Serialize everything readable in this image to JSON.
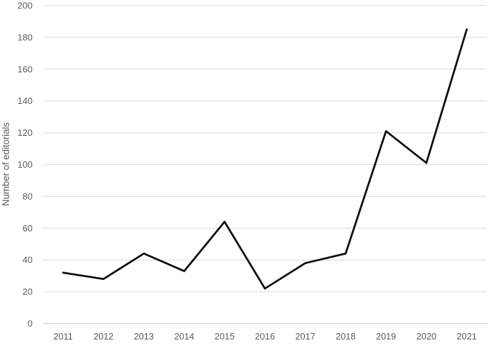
{
  "chart_data": {
    "type": "line",
    "title": "",
    "xlabel": "",
    "ylabel": "Number of editorials",
    "categories": [
      "2011",
      "2012",
      "2013",
      "2014",
      "2015",
      "2016",
      "2017",
      "2018",
      "2019",
      "2020",
      "2021"
    ],
    "values": [
      32,
      28,
      44,
      33,
      64,
      22,
      38,
      44,
      121,
      101,
      185
    ],
    "ylim": [
      0,
      200
    ],
    "ytick_step": 20,
    "yticks": [
      0,
      20,
      40,
      60,
      80,
      100,
      120,
      140,
      160,
      180,
      200
    ],
    "grid": true,
    "legend_position": "none",
    "markers": false,
    "colors": {
      "series_line": "#0d0d0d",
      "gridline": "#d9d9d9",
      "axis_line": "#bfbfbf",
      "tick_label": "#595959",
      "axis_title": "#595959",
      "background": "#ffffff"
    }
  }
}
